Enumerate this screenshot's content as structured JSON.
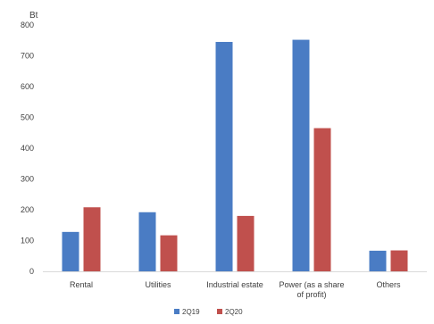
{
  "chart_data": {
    "type": "bar",
    "unit_label": "Bt",
    "categories": [
      [
        "Rental"
      ],
      [
        "Utilities"
      ],
      [
        "Industrial estate"
      ],
      [
        "Power (as a share",
        "of profit)"
      ],
      [
        "Others"
      ]
    ],
    "series": [
      {
        "name": "2Q19",
        "color": "#4a7cc4",
        "values": [
          128,
          192,
          745,
          752,
          67
        ]
      },
      {
        "name": "2Q20",
        "color": "#c0504d",
        "values": [
          208,
          117,
          180,
          465,
          68
        ]
      }
    ],
    "ylim": [
      0,
      800
    ],
    "yticks": [
      0,
      100,
      200,
      300,
      400,
      500,
      600,
      700,
      800
    ],
    "grid": false,
    "legend_position": "bottom"
  }
}
